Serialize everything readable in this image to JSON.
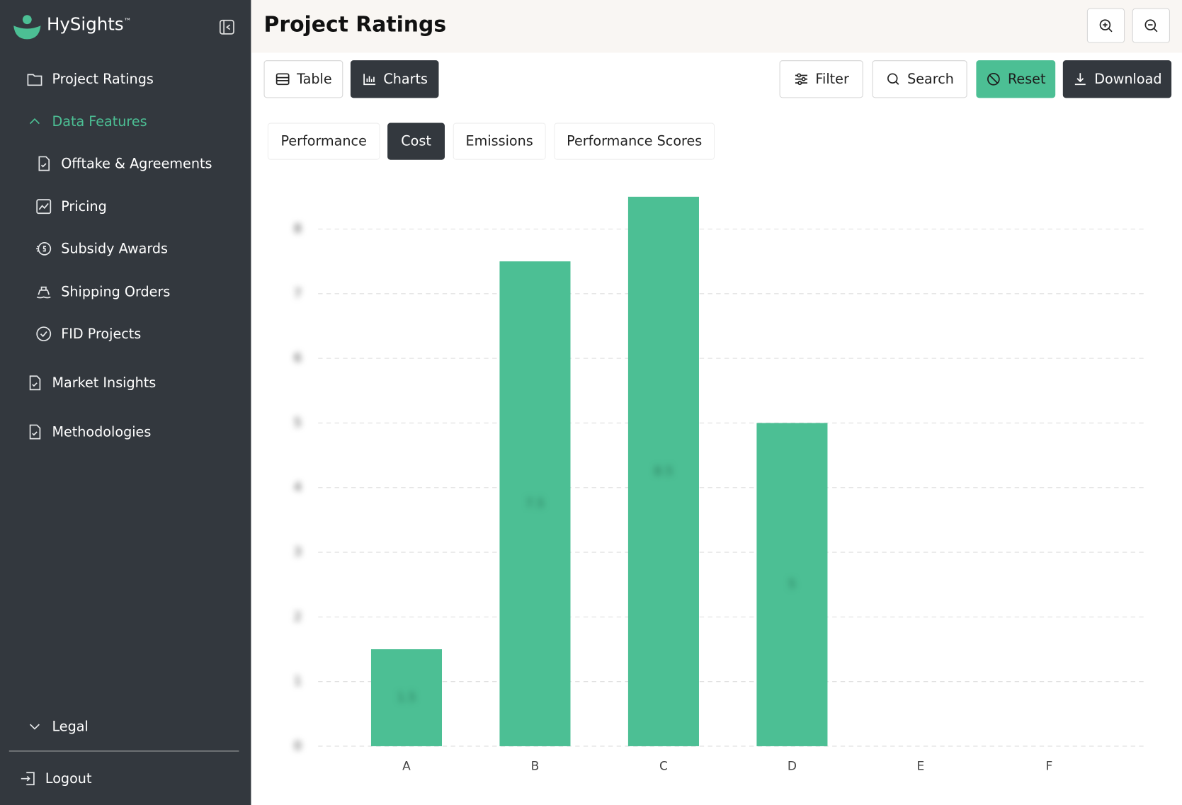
{
  "sidebar": {
    "brand": "HySights",
    "brand_mark": "™",
    "nav": [
      "Project Ratings",
      "Data Features",
      "Offtake & Agreements",
      "Pricing",
      "Subsidy Awards",
      "Shipping Orders",
      "FID Projects",
      "Market Insights",
      "Methodologies"
    ],
    "legal": "Legal",
    "logout": "Logout"
  },
  "header": {
    "title": "Project Ratings"
  },
  "toolbar": {
    "views": [
      "Table",
      "Charts"
    ],
    "actions": [
      "Filter",
      "Search",
      "Reset",
      "Download"
    ]
  },
  "tabs": [
    "Performance",
    "Cost",
    "Emissions",
    "Performance Scores"
  ],
  "chart_data": {
    "type": "bar",
    "categories": [
      "A",
      "B",
      "C",
      "D",
      "E",
      "F"
    ],
    "values": [
      1.5,
      7.5,
      8.5,
      5,
      null,
      null
    ],
    "color": "#4cbf94",
    "ylim": [
      0,
      8.5
    ],
    "yticks": [
      0,
      1,
      2,
      3,
      4,
      5,
      6,
      7,
      8
    ],
    "grid": true
  }
}
